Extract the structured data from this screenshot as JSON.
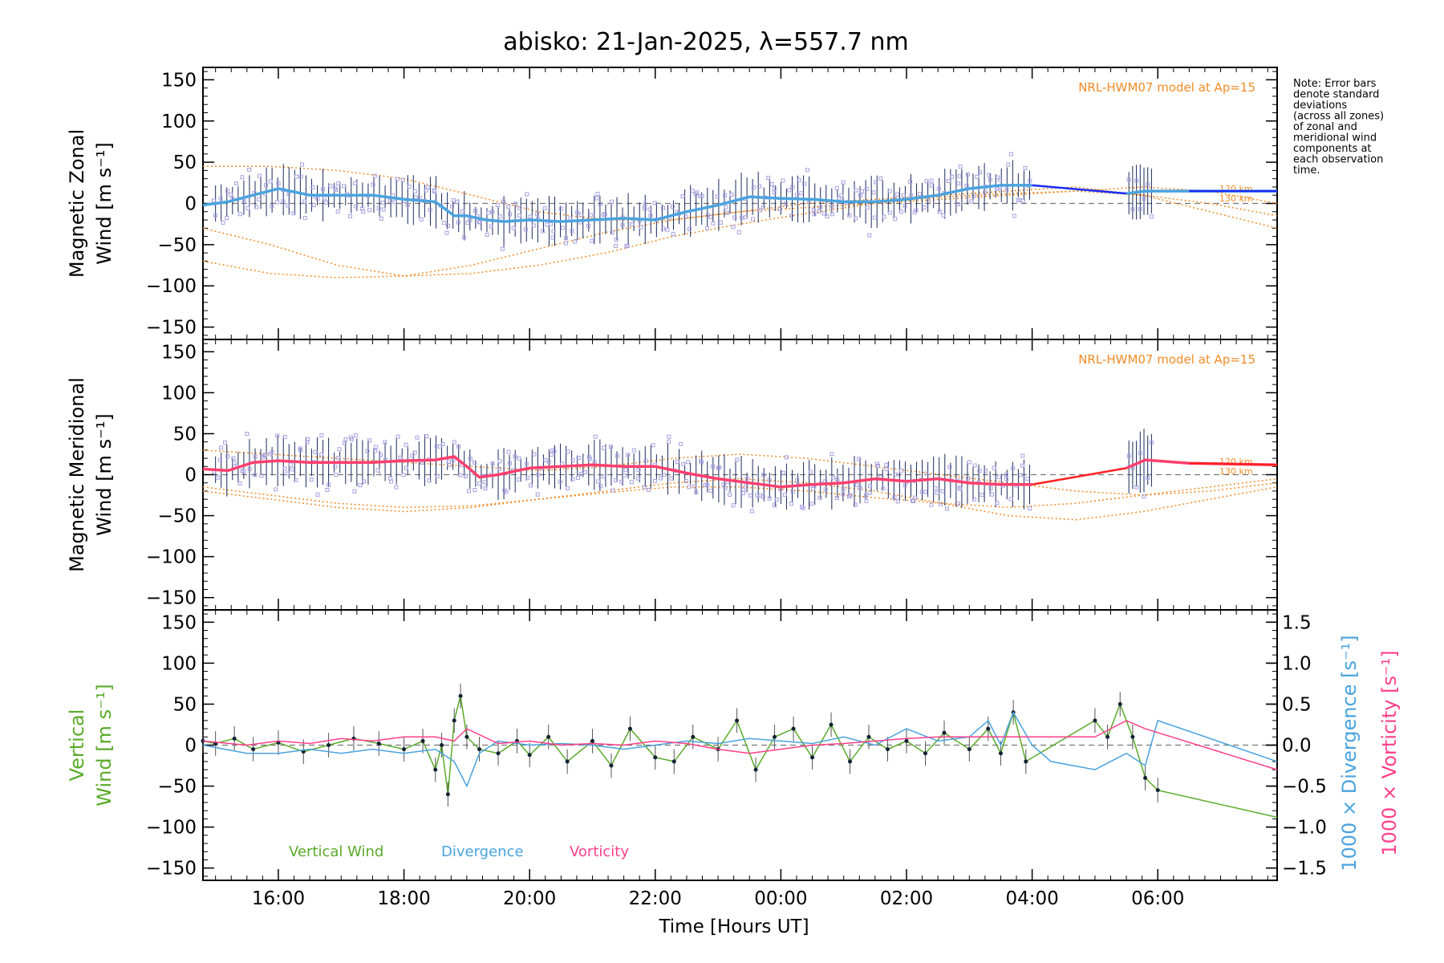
{
  "title": "abisko: 21-Jan-2025, λ=557.7 nm",
  "note_lines": [
    "Note: Error bars",
    "denote standard",
    "deviations",
    "(across all zones)",
    "of zonal and",
    "meridional wind",
    "components at",
    "each observation",
    "time."
  ],
  "x_axis": {
    "label": "Time [Hours UT]",
    "tick_labels": [
      "16:00",
      "18:00",
      "20:00",
      "22:00",
      "00:00",
      "02:00",
      "04:00",
      "06:00"
    ],
    "tick_hours": [
      16,
      18,
      20,
      22,
      24,
      26,
      28,
      30
    ],
    "range_hours": [
      14.8,
      31.9
    ]
  },
  "colors": {
    "zonal": "#4aa3df",
    "zonal_model_line": "#1a2bff",
    "meridional": "#ff3f6e",
    "meridional_model_line": "#ff2020",
    "vertical": "#5aab2a",
    "divergence": "#4aa3df",
    "vorticity": "#ff3f8a",
    "model": "#f08c28",
    "scatter": "#a8a0e0",
    "errorbar": "#1a2a5a"
  },
  "panels": [
    {
      "name": "zonal",
      "ylabel_lines": [
        "Magnetic Zonal",
        "Wind [m s⁻¹]"
      ],
      "model_label": "NRL-HWM07 model at Ap=15",
      "alt_labels": [
        "120 km",
        "130 km"
      ]
    },
    {
      "name": "meridional",
      "ylabel_lines": [
        "Magnetic Meridional",
        "Wind [m s⁻¹]"
      ],
      "model_label": "NRL-HWM07 model at Ap=15",
      "alt_labels": [
        "120 km",
        "130 km"
      ]
    },
    {
      "name": "vertical",
      "ylabel_lines": [
        "Vertical",
        "Wind [m s⁻¹]"
      ],
      "right_label_1": "1000 × Divergence [s⁻¹]",
      "right_label_2": "1000 × Vorticity [s⁻¹]",
      "legend": [
        "Vertical Wind",
        "Divergence",
        "Vorticity"
      ]
    }
  ],
  "chart_data": [
    {
      "type": "line",
      "title": "abisko: 21-Jan-2025, λ=557.7 nm",
      "ylabel": "Magnetic Zonal Wind [m s⁻¹]",
      "xlabel": "Time [Hours UT]",
      "ylim": [
        -165,
        165
      ],
      "yticks": [
        -150,
        -100,
        -50,
        0,
        50,
        100,
        150
      ],
      "annotation": "NRL-HWM07 model at Ap=15",
      "series": [],
      "x": [
        14.8,
        15.2,
        15.6,
        16.0,
        16.5,
        17.0,
        17.5,
        18.0,
        18.5,
        18.8,
        19.0,
        19.3,
        19.6,
        20.0,
        20.5,
        21.0,
        21.5,
        22.0,
        22.5,
        23.0,
        23.5,
        24.0,
        24.5,
        25.0,
        25.5,
        26.0,
        26.5,
        27.0,
        27.5,
        28.0,
        29.0,
        29.5,
        29.8,
        30.5,
        31.9
      ],
      "y": [
        -2,
        2,
        10,
        18,
        10,
        10,
        10,
        5,
        2,
        -15,
        -15,
        -20,
        -22,
        -20,
        -22,
        -20,
        -18,
        -20,
        -10,
        -2,
        8,
        6,
        5,
        2,
        2,
        5,
        10,
        18,
        22,
        22,
        null,
        12,
        15,
        15,
        15
      ]
    },
    {
      "type": "line",
      "ylabel": "Magnetic Meridional Wind [m s⁻¹]",
      "xlabel": "Time [Hours UT]",
      "ylim": [
        -165,
        165
      ],
      "yticks": [
        -150,
        -100,
        -50,
        0,
        50,
        100,
        150
      ],
      "annotation": "NRL-HWM07 model at Ap=15",
      "series": [],
      "x": [
        14.8,
        15.2,
        15.6,
        16.0,
        16.5,
        17.0,
        17.5,
        18.0,
        18.5,
        18.8,
        19.0,
        19.2,
        19.5,
        20.0,
        20.5,
        21.0,
        21.5,
        22.0,
        22.5,
        23.0,
        23.5,
        24.0,
        24.5,
        25.0,
        25.5,
        26.0,
        26.5,
        27.0,
        27.5,
        28.0,
        29.0,
        29.5,
        29.8,
        30.5,
        31.9
      ],
      "y": [
        7,
        5,
        15,
        17,
        15,
        15,
        15,
        17,
        18,
        22,
        10,
        -3,
        0,
        8,
        10,
        12,
        10,
        10,
        2,
        -5,
        -10,
        -15,
        -12,
        -10,
        -5,
        -8,
        -5,
        -10,
        -12,
        -12,
        null,
        8,
        18,
        14,
        12
      ]
    },
    {
      "type": "line",
      "ylabel": "Vertical Wind [m s⁻¹]",
      "xlabel": "Time [Hours UT]",
      "ylim": [
        -165,
        165
      ],
      "yticks": [
        -150,
        -100,
        -50,
        0,
        50,
        100,
        150
      ],
      "y2lim": [
        -1.65,
        1.65
      ],
      "y2ticks": [
        -1.5,
        -1.0,
        -0.5,
        0.0,
        0.5,
        1.0,
        1.5
      ],
      "legend": [
        "Vertical Wind",
        "Divergence",
        "Vorticity"
      ],
      "series": [
        {
          "name": "Vertical Wind",
          "axis": "left",
          "x": [
            14.8,
            15.0,
            15.3,
            15.6,
            16.0,
            16.4,
            16.8,
            17.2,
            17.6,
            18.0,
            18.3,
            18.5,
            18.6,
            18.7,
            18.8,
            18.9,
            19.0,
            19.2,
            19.5,
            19.8,
            20.0,
            20.3,
            20.6,
            21.0,
            21.3,
            21.6,
            22.0,
            22.3,
            22.6,
            23.0,
            23.3,
            23.6,
            23.9,
            24.2,
            24.5,
            24.8,
            25.1,
            25.4,
            25.7,
            26.0,
            26.3,
            26.6,
            27.0,
            27.3,
            27.5,
            27.7,
            27.9,
            29.0,
            29.2,
            29.4,
            29.6,
            29.8,
            30.0,
            31.9
          ],
          "y": [
            5,
            2,
            8,
            -5,
            3,
            -8,
            0,
            8,
            2,
            -5,
            5,
            -30,
            0,
            -60,
            30,
            60,
            10,
            -5,
            -10,
            5,
            -12,
            10,
            -20,
            5,
            -25,
            20,
            -15,
            -20,
            10,
            -5,
            30,
            -30,
            10,
            20,
            -15,
            25,
            -20,
            10,
            -5,
            5,
            -10,
            15,
            -5,
            20,
            -10,
            40,
            -20,
            30,
            10,
            50,
            10,
            -40,
            -55,
            -88
          ]
        },
        {
          "name": "Divergence",
          "axis": "right",
          "x": [
            14.8,
            15.5,
            16.0,
            16.5,
            17.0,
            17.5,
            18.0,
            18.5,
            18.8,
            19.0,
            19.2,
            19.5,
            20.0,
            20.5,
            21.0,
            21.5,
            22.0,
            22.5,
            23.0,
            23.5,
            24.0,
            24.5,
            25.0,
            25.5,
            26.0,
            26.5,
            27.0,
            27.3,
            27.5,
            27.7,
            28.0,
            28.3,
            29.0,
            29.5,
            29.8,
            30.0,
            31.9
          ],
          "y": [
            0.0,
            -0.1,
            -0.1,
            -0.05,
            -0.1,
            -0.05,
            -0.1,
            -0.05,
            -0.2,
            -0.5,
            -0.1,
            0.05,
            0.0,
            0.02,
            0.0,
            -0.05,
            0.0,
            0.05,
            0.02,
            0.08,
            0.05,
            0.02,
            0.1,
            0.0,
            0.2,
            0.05,
            0.1,
            0.3,
            0.0,
            0.4,
            0.0,
            -0.2,
            -0.3,
            -0.1,
            -0.25,
            0.3,
            -0.2
          ]
        },
        {
          "name": "Vorticity",
          "axis": "right",
          "x": [
            14.8,
            15.5,
            16.0,
            16.5,
            17.0,
            17.5,
            18.0,
            18.5,
            18.8,
            19.0,
            19.5,
            20.0,
            20.5,
            21.0,
            21.5,
            22.0,
            22.5,
            23.0,
            23.5,
            24.0,
            24.5,
            25.0,
            25.5,
            26.0,
            26.5,
            27.0,
            27.5,
            28.0,
            29.0,
            29.5,
            29.8,
            31.9
          ],
          "y": [
            0.05,
            0.0,
            0.05,
            0.02,
            0.08,
            0.05,
            0.1,
            0.1,
            0.05,
            0.2,
            0.02,
            0.05,
            0.0,
            0.02,
            0.0,
            0.05,
            0.02,
            -0.05,
            -0.1,
            -0.05,
            0.0,
            0.02,
            0.05,
            0.08,
            0.1,
            0.1,
            0.1,
            0.1,
            0.1,
            0.3,
            0.2,
            -0.3
          ]
        }
      ]
    }
  ]
}
